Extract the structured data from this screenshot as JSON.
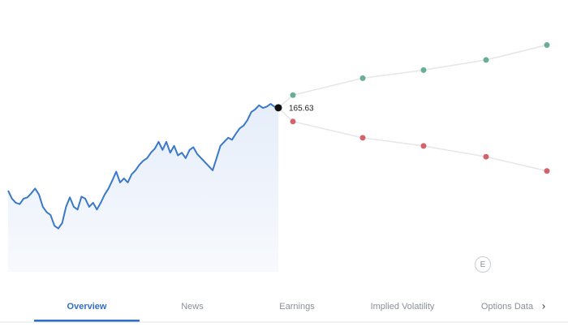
{
  "chart_data": {
    "type": "line",
    "values": [
      153.4,
      152.2,
      151.6,
      151.4,
      152.2,
      152.4,
      153.0,
      153.7,
      152.8,
      151.0,
      150.2,
      149.8,
      148.2,
      147.8,
      148.6,
      151.0,
      152.4,
      151.0,
      150.6,
      152.5,
      152.2,
      151.0,
      151.6,
      150.6,
      151.6,
      152.8,
      153.7,
      154.9,
      156.2,
      154.6,
      155.2,
      154.6,
      155.8,
      156.4,
      157.2,
      157.8,
      158.2,
      159.0,
      159.6,
      160.6,
      159.4,
      160.6,
      159.0,
      160.0,
      158.6,
      159.0,
      158.2,
      159.4,
      159.8,
      158.8,
      158.2,
      157.6,
      157.0,
      156.4,
      158.2,
      160.0,
      160.6,
      161.2,
      160.9,
      161.8,
      162.6,
      163.0,
      163.8,
      165.0,
      165.4,
      166.0,
      165.6,
      165.8,
      166.2,
      165.8,
      165.63
    ],
    "color": "#3a78c9",
    "ylim": [
      145,
      177
    ],
    "last_value": 165.63,
    "forecast": {
      "high": [
        167.5,
        170.0,
        171.2,
        172.7,
        174.9
      ],
      "low": [
        163.6,
        161.2,
        160.0,
        158.4,
        156.3
      ],
      "high_color": "#6aae94",
      "low_color": "#d4626b"
    }
  },
  "earnings_marker": "E",
  "tabs": {
    "items": [
      "Overview",
      "News",
      "Earnings",
      "Implied Volatility",
      "Options Data"
    ],
    "active": 0
  }
}
